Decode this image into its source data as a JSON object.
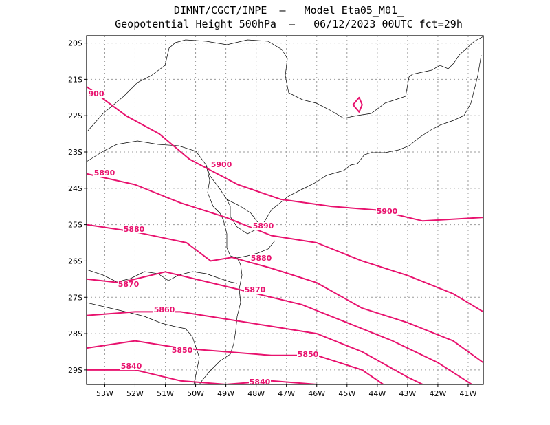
{
  "title_line1": "DIMNT/CGCT/INPE  –   Model Eta05_M01_",
  "title_line2": "Geopotential Height 500hPa  –   06/12/2023 00UTC fct=29h",
  "colors": {
    "contour": "#e8126e",
    "coast": "#000000",
    "grid": "#9a9a9a"
  },
  "lat_labels": [
    "20S",
    "21S",
    "22S",
    "23S",
    "24S",
    "25S",
    "26S",
    "27S",
    "28S",
    "29S"
  ],
  "lon_labels": [
    "53W",
    "52W",
    "51W",
    "50W",
    "49W",
    "48W",
    "47W",
    "46W",
    "45W",
    "44W",
    "43W",
    "42W",
    "41W"
  ],
  "contour_labels": [
    "900",
    "5890",
    "5900",
    "5900",
    "5880",
    "5890",
    "5880",
    "5870",
    "5870",
    "5860",
    "5850",
    "5850",
    "5840",
    "5840"
  ],
  "chart_data": {
    "type": "map",
    "variable": "Geopotential Height 500hPa",
    "lon_range": [
      -53.6,
      -40.5
    ],
    "lat_range": [
      -29.4,
      -19.8
    ],
    "grid": true,
    "contours": [
      {
        "value": 5900,
        "points": [
          [
            -53.6,
            -21.2
          ],
          [
            -52.3,
            -22.0
          ],
          [
            -51.2,
            -22.5
          ],
          [
            -50.2,
            -23.2
          ],
          [
            -48.6,
            -23.9
          ],
          [
            -47.2,
            -24.3
          ],
          [
            -45.5,
            -24.5
          ],
          [
            -44.0,
            -24.6
          ],
          [
            -42.5,
            -24.9
          ],
          [
            -40.5,
            -24.8
          ]
        ]
      },
      {
        "value": 5890,
        "points": [
          [
            -53.6,
            -23.6
          ],
          [
            -52.0,
            -23.9
          ],
          [
            -50.5,
            -24.4
          ],
          [
            -49.0,
            -24.8
          ],
          [
            -47.5,
            -25.3
          ],
          [
            -46.0,
            -25.5
          ],
          [
            -44.5,
            -26.0
          ],
          [
            -43.0,
            -26.4
          ],
          [
            -41.5,
            -26.9
          ],
          [
            -40.5,
            -27.4
          ]
        ]
      },
      {
        "value": 5880,
        "points": [
          [
            -53.6,
            -25.0
          ],
          [
            -52.0,
            -25.2
          ],
          [
            -50.3,
            -25.5
          ],
          [
            -49.5,
            -26.0
          ],
          [
            -48.8,
            -25.9
          ],
          [
            -47.5,
            -26.2
          ],
          [
            -46.0,
            -26.6
          ],
          [
            -44.5,
            -27.3
          ],
          [
            -43.0,
            -27.7
          ],
          [
            -41.5,
            -28.2
          ],
          [
            -40.5,
            -28.8
          ]
        ]
      },
      {
        "value": 5870,
        "points": [
          [
            -53.6,
            -26.5
          ],
          [
            -52.5,
            -26.6
          ],
          [
            -51.0,
            -26.3
          ],
          [
            -49.5,
            -26.6
          ],
          [
            -48.0,
            -26.9
          ],
          [
            -46.5,
            -27.2
          ],
          [
            -45.0,
            -27.7
          ],
          [
            -43.5,
            -28.2
          ],
          [
            -42.0,
            -28.8
          ],
          [
            -40.5,
            -29.6
          ]
        ]
      },
      {
        "value": 5860,
        "points": [
          [
            -53.6,
            -27.5
          ],
          [
            -52.0,
            -27.4
          ],
          [
            -50.5,
            -27.4
          ],
          [
            -49.0,
            -27.6
          ],
          [
            -47.5,
            -27.8
          ],
          [
            -46.0,
            -28.0
          ],
          [
            -44.5,
            -28.5
          ],
          [
            -43.0,
            -29.2
          ],
          [
            -42.0,
            -29.6
          ]
        ]
      },
      {
        "value": 5850,
        "points": [
          [
            -53.6,
            -28.4
          ],
          [
            -52.0,
            -28.2
          ],
          [
            -50.5,
            -28.4
          ],
          [
            -49.0,
            -28.5
          ],
          [
            -47.5,
            -28.6
          ],
          [
            -46.0,
            -28.6
          ],
          [
            -44.5,
            -29.0
          ],
          [
            -43.8,
            -29.4
          ]
        ]
      },
      {
        "value": 5840,
        "points": [
          [
            -53.6,
            -29.0
          ],
          [
            -52.0,
            -29.0
          ],
          [
            -50.5,
            -29.3
          ],
          [
            -49.0,
            -29.4
          ],
          [
            -47.5,
            -29.3
          ],
          [
            -46.0,
            -29.4
          ]
        ]
      },
      {
        "value": 5900,
        "points": [
          [
            -44.8,
            -21.7
          ],
          [
            -44.6,
            -21.5
          ],
          [
            -44.5,
            -21.7
          ],
          [
            -44.6,
            -21.9
          ],
          [
            -44.8,
            -21.7
          ]
        ],
        "closed": true
      }
    ]
  }
}
